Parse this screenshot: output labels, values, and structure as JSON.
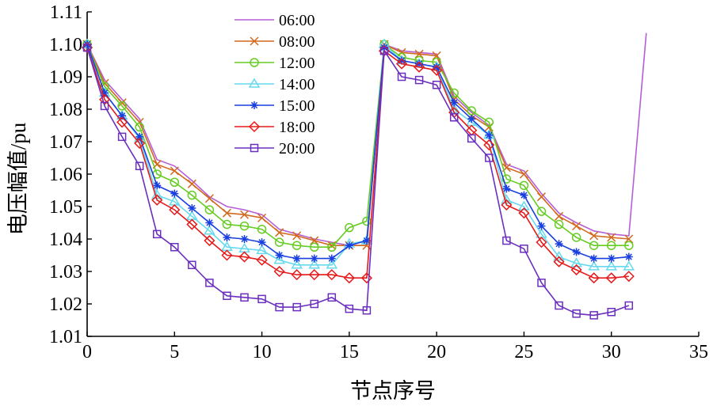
{
  "chart_data": {
    "type": "line",
    "xlabel": "节点序号",
    "ylabel": "电压幅值/pu",
    "xlim": [
      0,
      35
    ],
    "ylim": [
      1.01,
      1.11
    ],
    "xticks": [
      "0",
      "5",
      "10",
      "15",
      "20",
      "25",
      "30",
      "35"
    ],
    "yticks": [
      "1.01",
      "1.02",
      "1.03",
      "1.04",
      "1.05",
      "1.06",
      "1.07",
      "1.08",
      "1.09",
      "1.10",
      "1.11"
    ],
    "grid": false,
    "legend_position": "top-center",
    "series": [
      {
        "name": "06:00",
        "color": "#B55FD6",
        "marker": "none",
        "segments": [
          {
            "x0": 0,
            "values": [
              1.1,
              1.089,
              1.083,
              1.077,
              1.0645,
              1.0625,
              1.058,
              1.053,
              1.05,
              1.049,
              1.0475,
              1.043,
              1.0415,
              1.04,
              1.039,
              1.038,
              1.038
            ]
          },
          {
            "x0": 17,
            "values": [
              1.1,
              1.098,
              1.0975,
              1.097,
              1.084,
              1.079,
              1.075,
              1.063,
              1.061,
              1.054,
              1.048,
              1.045,
              1.0425,
              1.0415,
              1.041
            ]
          },
          {
            "x0": 32,
            "values": [
              1.1035
            ]
          }
        ]
      },
      {
        "name": "08:00",
        "color": "#D2691E",
        "marker": "x",
        "segments": [
          {
            "x0": 0,
            "values": [
              1.1,
              1.088,
              1.082,
              1.076,
              1.063,
              1.061,
              1.057,
              1.0525,
              1.048,
              1.0475,
              1.0465,
              1.042,
              1.041,
              1.0395,
              1.038,
              1.038,
              1.038
            ]
          },
          {
            "x0": 17,
            "values": [
              1.1,
              1.0975,
              1.097,
              1.0965,
              1.083,
              1.078,
              1.0745,
              1.062,
              1.06,
              1.053,
              1.047,
              1.044,
              1.041,
              1.0405,
              1.04
            ]
          }
        ]
      },
      {
        "name": "12:00",
        "color": "#66CC22",
        "marker": "circle",
        "segments": [
          {
            "x0": 0,
            "values": [
              1.1,
              1.087,
              1.081,
              1.0745,
              1.06,
              1.0575,
              1.0535,
              1.049,
              1.0445,
              1.044,
              1.043,
              1.039,
              1.038,
              1.0375,
              1.0375,
              1.0435,
              1.0455
            ]
          },
          {
            "x0": 17,
            "values": [
              1.1,
              1.096,
              1.095,
              1.0945,
              1.085,
              1.0795,
              1.076,
              1.0585,
              1.0565,
              1.0485,
              1.0445,
              1.0405,
              1.038,
              1.038,
              1.038
            ]
          }
        ]
      },
      {
        "name": "14:00",
        "color": "#66D9EE",
        "marker": "triangle",
        "segments": [
          {
            "x0": 0,
            "values": [
              1.1,
              1.085,
              1.078,
              1.071,
              1.0535,
              1.0515,
              1.047,
              1.0425,
              1.0375,
              1.037,
              1.0365,
              1.0335,
              1.032,
              1.032,
              1.032,
              1.0385,
              1.0395
            ]
          },
          {
            "x0": 17,
            "values": [
              1.1,
              1.095,
              1.094,
              1.093,
              1.08,
              1.076,
              1.072,
              1.052,
              1.05,
              1.0415,
              1.0345,
              1.0325,
              1.0315,
              1.0315,
              1.0315
            ]
          }
        ]
      },
      {
        "name": "15:00",
        "color": "#1A3FE0",
        "marker": "star",
        "segments": [
          {
            "x0": 0,
            "values": [
              1.1,
              1.085,
              1.078,
              1.0715,
              1.0565,
              1.054,
              1.0495,
              1.045,
              1.0405,
              1.04,
              1.039,
              1.035,
              1.034,
              1.034,
              1.034,
              1.038,
              1.0395
            ]
          },
          {
            "x0": 17,
            "values": [
              1.099,
              1.095,
              1.094,
              1.093,
              1.082,
              1.077,
              1.072,
              1.0555,
              1.0535,
              1.044,
              1.0385,
              1.036,
              1.034,
              1.034,
              1.0345
            ]
          }
        ]
      },
      {
        "name": "18:00",
        "color": "#E51A1A",
        "marker": "diamond",
        "segments": [
          {
            "x0": 0,
            "values": [
              1.099,
              1.083,
              1.076,
              1.0695,
              1.052,
              1.049,
              1.0445,
              1.0395,
              1.035,
              1.0345,
              1.0335,
              1.03,
              1.029,
              1.029,
              1.029,
              1.028,
              1.028
            ]
          },
          {
            "x0": 17,
            "values": [
              1.098,
              1.094,
              1.093,
              1.092,
              1.079,
              1.0735,
              1.069,
              1.0505,
              1.048,
              1.039,
              1.033,
              1.0305,
              1.028,
              1.028,
              1.0285
            ]
          }
        ]
      },
      {
        "name": "20:00",
        "color": "#6B2FBF",
        "marker": "square",
        "segments": [
          {
            "x0": 0,
            "values": [
              1.099,
              1.081,
              1.0715,
              1.0625,
              1.0415,
              1.0375,
              1.032,
              1.0265,
              1.0225,
              1.022,
              1.0215,
              1.019,
              1.019,
              1.02,
              1.022,
              1.0185,
              1.018
            ]
          },
          {
            "x0": 17,
            "values": [
              1.098,
              1.09,
              1.089,
              1.0875,
              1.0775,
              1.071,
              1.065,
              1.0395,
              1.037,
              1.0265,
              1.0195,
              1.017,
              1.0165,
              1.0175,
              1.0195
            ]
          }
        ]
      }
    ]
  }
}
